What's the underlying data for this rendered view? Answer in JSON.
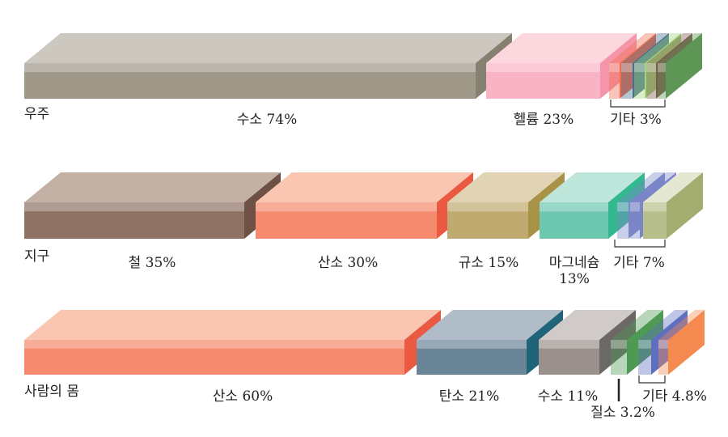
{
  "rows": [
    {
      "title": "우주",
      "segments": [
        {
          "label": "수소 74%",
          "percent": 74,
          "colors": [
            "#a09888",
            "#cdc8bf",
            "#858070"
          ]
        },
        {
          "label": "헬륨 23%",
          "percent": 23,
          "colors": [
            "#f8b4c4",
            "#fcd7de",
            "#f495a9"
          ]
        },
        {
          "label": "기타 3%",
          "percent": 3,
          "colors": [
            "#f26d50",
            "#46708c",
            "#a6d47e",
            "#7a5a4c",
            "#5e9656"
          ]
        }
      ]
    },
    {
      "title": "지구",
      "segments": [
        {
          "label": "철 35%",
          "percent": 35,
          "colors": [
            "#8e7264",
            "#c3b1a6",
            "#6e5044"
          ]
        },
        {
          "label": "산소 30%",
          "percent": 30,
          "colors": [
            "#f58a6e",
            "#fac6b2",
            "#ea5a42"
          ]
        },
        {
          "label": "규소 15%",
          "percent": 15,
          "colors": [
            "#c0aa70",
            "#e0d4b4",
            "#a89246"
          ]
        },
        {
          "label": "마그네슘 13%",
          "percent": 13,
          "colors": [
            "#6ec8b0",
            "#bfe6db",
            "#34b890"
          ]
        },
        {
          "label": "기타 7%",
          "percent": 7,
          "colors": [
            "#7a86c8",
            "#7a86c8",
            "#b7bf8c"
          ]
        }
      ]
    },
    {
      "title": "사람의 몸",
      "segments": [
        {
          "label": "산소 60%",
          "percent": 60,
          "colors": [
            "#f58a6e",
            "#fac6b2",
            "#ea5a42"
          ]
        },
        {
          "label": "탄소 21%",
          "percent": 21,
          "colors": [
            "#6a8598",
            "#b0bcc8",
            "#1f6478"
          ]
        },
        {
          "label": "수소 11%",
          "percent": 11,
          "colors": [
            "#9a918c",
            "#d0cbc8",
            "#6c6866"
          ]
        },
        {
          "label": "질소 3.2%",
          "percent": 3.2,
          "colors": [
            "#4e9a52"
          ]
        },
        {
          "label": "기타 4.8%",
          "percent": 4.8,
          "colors": [
            "#5f6fc0",
            "#f58a50"
          ]
        }
      ]
    }
  ]
}
